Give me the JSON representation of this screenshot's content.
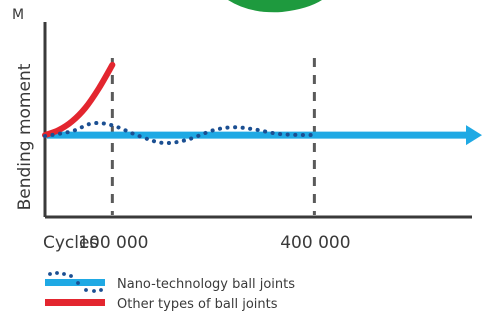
{
  "chart_data": {
    "type": "line",
    "ylabel": "Bending moment",
    "y_axis_marker": "M",
    "xlabel": "Cycles",
    "x_ticks": [
      {
        "value": 100000,
        "label": "100 000"
      },
      {
        "value": 400000,
        "label": "400 000"
      }
    ],
    "xlim": [
      0,
      640000
    ],
    "ylim": [
      0,
      10
    ],
    "series": [
      {
        "name": "Nano-technology ball joints",
        "color": "#1fa9e4",
        "dots_color": "#1b4f92",
        "x": [
          0,
          40000,
          70000,
          100000,
          140000,
          175000,
          210000,
          250000,
          280000,
          310000,
          350000,
          400000
        ],
        "y": [
          4.15,
          4.4,
          4.8,
          4.7,
          4.15,
          3.8,
          3.95,
          4.45,
          4.6,
          4.5,
          4.25,
          4.2
        ]
      },
      {
        "name": "Other types of ball joints",
        "color": "#e3262f",
        "x": [
          0,
          20000,
          40000,
          60000,
          80000,
          100000
        ],
        "y": [
          4.2,
          4.45,
          4.9,
          5.6,
          6.6,
          7.8
        ]
      }
    ],
    "baseline": {
      "color": "#1fa9e4",
      "y": 4.2
    }
  }
}
